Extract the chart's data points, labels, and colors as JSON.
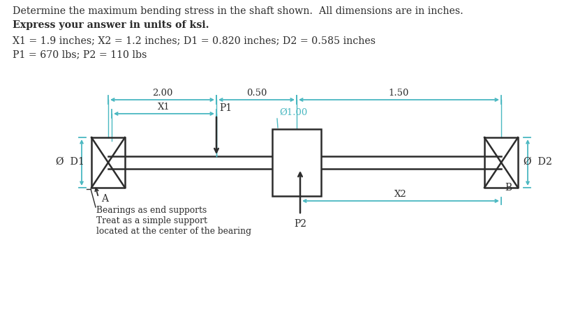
{
  "title_line1": "Determine the maximum bending stress in the shaft shown.  All dimensions are in inches.",
  "title_line2": "Express your answer in units of ksi.",
  "params_line1": "X1 = 1.9 inches; X2 = 1.2 inches; D1 = 0.820 inches; D2 = 0.585 inches",
  "params_line2": "P1 = 670 lbs; P2 = 110 lbs",
  "bg_color": "#ffffff",
  "text_color": "#2c2c2c",
  "dim_color": "#4ab8c1",
  "shaft_color": "#2c2c2c",
  "dim_2_00": "2.00",
  "dim_0_50": "0.50",
  "dim_1_50": "1.50",
  "dim_X1": "X1",
  "dim_phi": "Ø1.00",
  "dim_X2": "X2",
  "label_P1": "P1",
  "label_P2": "P2",
  "label_A": "A",
  "label_B": "B",
  "label_D1": "Ø  D1",
  "label_D2": "Ø  D2",
  "note_line1": "Bearings as end supports",
  "note_line2": "Treat as a simple support",
  "note_line3": "located at the center of the bearing"
}
